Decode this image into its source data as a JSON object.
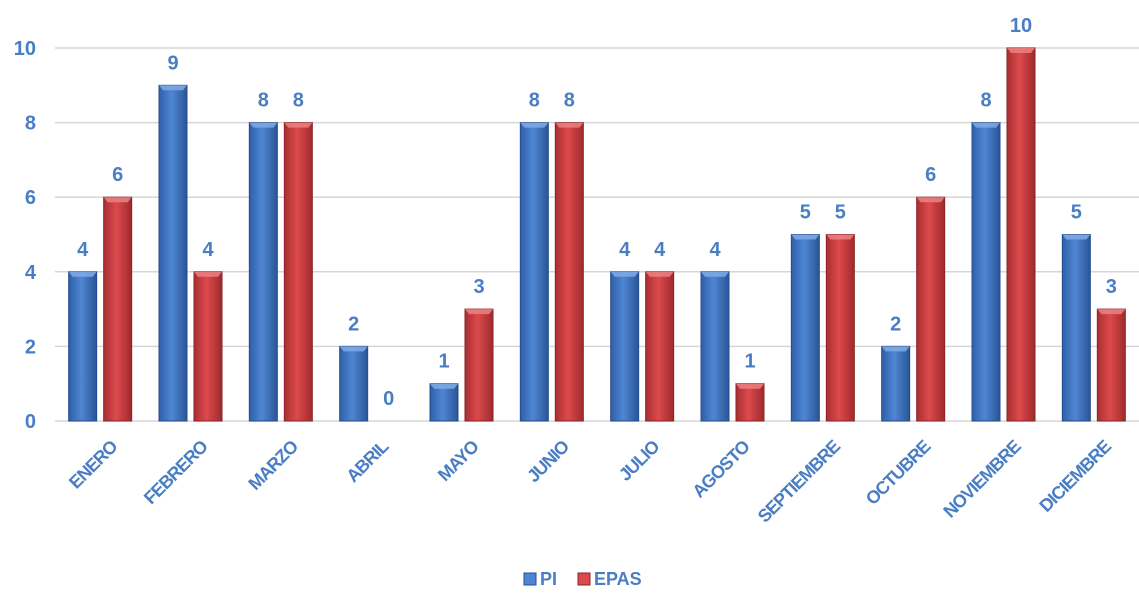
{
  "chart_data": {
    "type": "bar",
    "categories": [
      "ENERO",
      "FEBRERO",
      "MARZO",
      "ABRIL",
      "MAYO",
      "JUNIO",
      "JULIO",
      "AGOSTO",
      "SEPTIEMBRE",
      "OCTUBRE",
      "NOVIEMBRE",
      "DICIEMBRE"
    ],
    "series": [
      {
        "name": "PI",
        "values": [
          4,
          9,
          8,
          2,
          1,
          8,
          4,
          4,
          5,
          2,
          8,
          5
        ],
        "color": "#3a6fbf"
      },
      {
        "name": "EPAS",
        "values": [
          6,
          4,
          8,
          0,
          3,
          8,
          4,
          1,
          5,
          6,
          10,
          3
        ],
        "color": "#c63a3d"
      }
    ],
    "ylim": [
      0,
      10
    ],
    "yticks": [
      0,
      2,
      4,
      6,
      8,
      10
    ],
    "grid": true,
    "legend": "bottom-center",
    "label_color": "#4a7ec4",
    "title": "",
    "xlabel": "",
    "ylabel": ""
  }
}
